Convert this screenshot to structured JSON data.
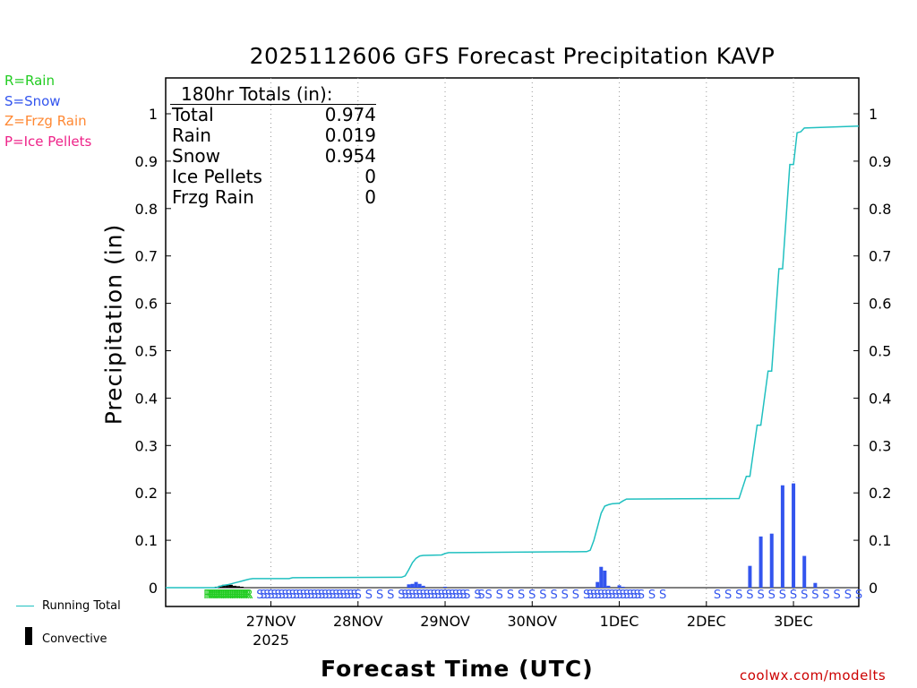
{
  "chart_data": {
    "type": "bar+line",
    "title": "2025112606 GFS Forecast Precipitation KAVP",
    "ylabel": "Precipitation (in)",
    "xlabel": "Forecast Time (UTC)",
    "ylim": [
      0,
      1.07
    ],
    "xlim": [
      -11,
      180
    ],
    "y_ticks": [
      "0",
      "0.1",
      "0.2",
      "0.3",
      "0.4",
      "0.5",
      "0.6",
      "0.7",
      "0.8",
      "0.9",
      "1"
    ],
    "y_tick_values": [
      0,
      0.1,
      0.2,
      0.3,
      0.4,
      0.5,
      0.6,
      0.7,
      0.8,
      0.9,
      1
    ],
    "x_ticks": [
      {
        "hour": 18,
        "label": "27NOV",
        "sublabel": "2025"
      },
      {
        "hour": 42,
        "label": "28NOV",
        "sublabel": ""
      },
      {
        "hour": 66,
        "label": "29NOV",
        "sublabel": ""
      },
      {
        "hour": 90,
        "label": "30NOV",
        "sublabel": ""
      },
      {
        "hour": 114,
        "label": "1DEC",
        "sublabel": ""
      },
      {
        "hour": 138,
        "label": "2DEC",
        "sublabel": ""
      },
      {
        "hour": 162,
        "label": "3DEC",
        "sublabel": ""
      }
    ],
    "grid": "vertical dotted at day boundaries",
    "running_total": {
      "name": "Running Total",
      "color": "#20c0c0",
      "points": [
        [
          -11,
          0
        ],
        [
          3,
          0
        ],
        [
          4,
          0.003
        ],
        [
          5,
          0.005
        ],
        [
          6,
          0.006
        ],
        [
          7,
          0.008
        ],
        [
          8,
          0.01
        ],
        [
          9,
          0.012
        ],
        [
          10,
          0.014
        ],
        [
          11,
          0.016
        ],
        [
          12,
          0.018
        ],
        [
          13,
          0.019
        ],
        [
          23,
          0.019
        ],
        [
          24,
          0.021
        ],
        [
          54,
          0.022
        ],
        [
          55,
          0.025
        ],
        [
          56,
          0.038
        ],
        [
          57,
          0.053
        ],
        [
          58,
          0.062
        ],
        [
          59,
          0.067
        ],
        [
          60,
          0.068
        ],
        [
          65,
          0.069
        ],
        [
          66,
          0.072
        ],
        [
          67,
          0.074
        ],
        [
          105,
          0.076
        ],
        [
          106,
          0.079
        ],
        [
          107,
          0.1
        ],
        [
          108,
          0.128
        ],
        [
          109,
          0.157
        ],
        [
          110,
          0.172
        ],
        [
          111,
          0.175
        ],
        [
          112,
          0.177
        ],
        [
          114,
          0.178
        ],
        [
          115,
          0.183
        ],
        [
          116,
          0.187
        ],
        [
          147,
          0.188
        ],
        [
          149,
          0.235
        ],
        [
          150,
          0.235
        ],
        [
          152,
          0.343
        ],
        [
          153,
          0.343
        ],
        [
          155,
          0.457
        ],
        [
          156,
          0.457
        ],
        [
          158,
          0.673
        ],
        [
          159,
          0.673
        ],
        [
          161,
          0.893
        ],
        [
          162,
          0.893
        ],
        [
          163,
          0.96
        ],
        [
          164,
          0.962
        ],
        [
          165,
          0.97
        ],
        [
          180,
          0.974
        ]
      ]
    },
    "bars": [
      {
        "hour": 3,
        "value": 0.002,
        "type": "convective"
      },
      {
        "hour": 4,
        "value": 0.004,
        "type": "convective"
      },
      {
        "hour": 5,
        "value": 0.006,
        "type": "convective"
      },
      {
        "hour": 6,
        "value": 0.006,
        "type": "convective"
      },
      {
        "hour": 7,
        "value": 0.006,
        "type": "convective"
      },
      {
        "hour": 8,
        "value": 0.004,
        "type": "convective"
      },
      {
        "hour": 9,
        "value": 0.003,
        "type": "convective"
      },
      {
        "hour": 10,
        "value": 0.002,
        "type": "convective"
      },
      {
        "hour": 56,
        "value": 0.007,
        "type": "snow"
      },
      {
        "hour": 57,
        "value": 0.008,
        "type": "snow"
      },
      {
        "hour": 58,
        "value": 0.012,
        "type": "snow"
      },
      {
        "hour": 59,
        "value": 0.008,
        "type": "snow"
      },
      {
        "hour": 60,
        "value": 0.004,
        "type": "snow"
      },
      {
        "hour": 66,
        "value": 0.002,
        "type": "snow"
      },
      {
        "hour": 108,
        "value": 0.012,
        "type": "snow"
      },
      {
        "hour": 109,
        "value": 0.044,
        "type": "snow"
      },
      {
        "hour": 110,
        "value": 0.036,
        "type": "snow"
      },
      {
        "hour": 111,
        "value": 0.004,
        "type": "snow"
      },
      {
        "hour": 114,
        "value": 0.005,
        "type": "snow"
      },
      {
        "hour": 115,
        "value": 0.002,
        "type": "snow"
      },
      {
        "hour": 150,
        "value": 0.046,
        "type": "snow"
      },
      {
        "hour": 153,
        "value": 0.108,
        "type": "snow"
      },
      {
        "hour": 156,
        "value": 0.114,
        "type": "snow"
      },
      {
        "hour": 159,
        "value": 0.216,
        "type": "snow"
      },
      {
        "hour": 162,
        "value": 0.22,
        "type": "snow"
      },
      {
        "hour": 165,
        "value": 0.067,
        "type": "snow"
      },
      {
        "hour": 168,
        "value": 0.01,
        "type": "snow"
      }
    ],
    "ptype_markers": {
      "R": [
        0.5,
        1,
        1.5,
        2,
        2.5,
        3,
        3.5,
        4,
        4.5,
        5,
        5.5,
        6,
        6.5,
        7,
        7.5,
        8,
        8.5,
        9,
        9.5,
        10,
        10.5,
        11,
        11.5,
        12
      ],
      "S": [
        15,
        16,
        17,
        18,
        19,
        20,
        21,
        22,
        23,
        24,
        25,
        26,
        27,
        28,
        29,
        30,
        31,
        32,
        33,
        34,
        35,
        36,
        37,
        38,
        39,
        40,
        41,
        42,
        45,
        48,
        51,
        54,
        55,
        56,
        57,
        58,
        59,
        60,
        61,
        62,
        63,
        64,
        65,
        66,
        67,
        68,
        69,
        70,
        71,
        72,
        75,
        76,
        78,
        81,
        84,
        87,
        90,
        93,
        96,
        99,
        102,
        105,
        106,
        107,
        108,
        109,
        110,
        111,
        112,
        113,
        114,
        115,
        116,
        117,
        118,
        119,
        120,
        123,
        126,
        141,
        144,
        147,
        150,
        153,
        156,
        159,
        162,
        165,
        168,
        171,
        174,
        177,
        180
      ],
      "R_color": "#22cc22",
      "S_color": "#3355ee"
    }
  },
  "legend": {
    "rain": "R=Rain",
    "snow": "S=Snow",
    "frzg": "Z=Frzg Rain",
    "ice": "P=Ice Pellets",
    "rain_color": "#22cc22",
    "snow_color": "#3355ee",
    "frzg_color": "#ff8833",
    "ice_color": "#ee2288",
    "running_total": "Running Total",
    "convective": "Convective"
  },
  "totals": {
    "title": "180hr Totals (in):",
    "rows": [
      {
        "label": "Total",
        "value": "0.974"
      },
      {
        "label": "Rain",
        "value": "0.019"
      },
      {
        "label": "Snow",
        "value": "0.954"
      },
      {
        "label": "Ice Pellets",
        "value": "0"
      },
      {
        "label": "Frzg Rain",
        "value": "0"
      }
    ]
  },
  "credit": "coolwx.com/modelts"
}
